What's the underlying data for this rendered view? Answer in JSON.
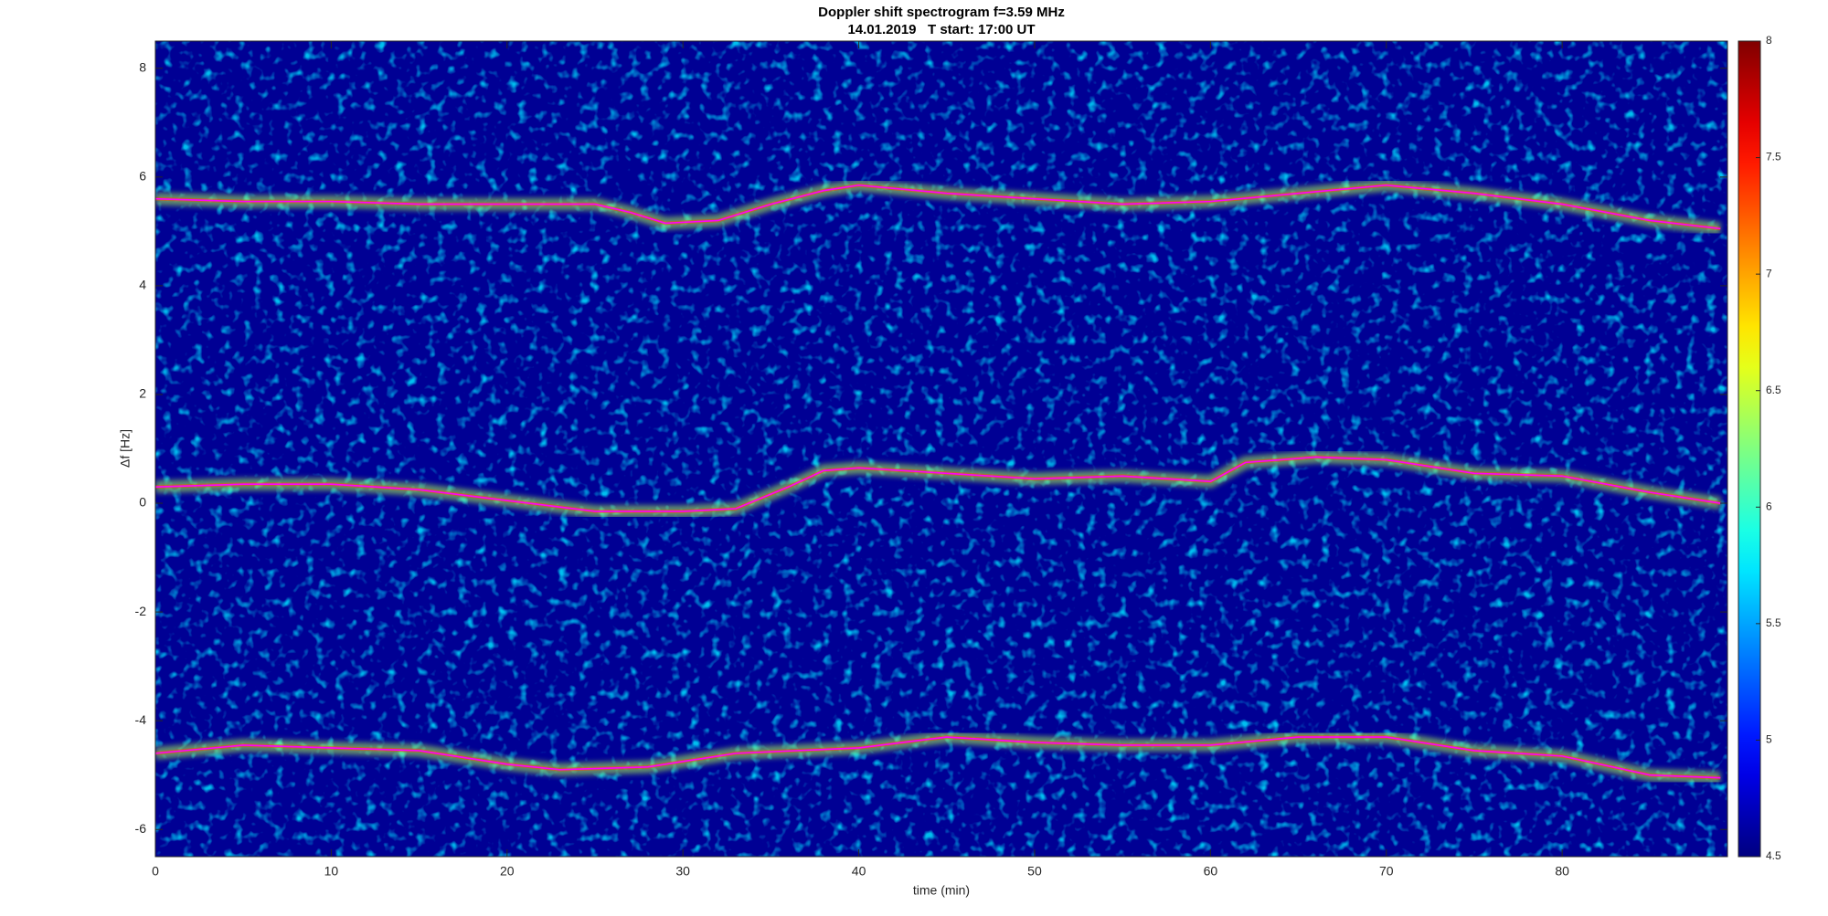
{
  "chart_data": {
    "type": "spectrogram",
    "title": "Doppler shift spectrogram f=3.59 MHz",
    "subtitle": "14.01.2019   T start: 17:00 UT",
    "x_label": "time (min)",
    "y_label": "Δf [Hz]",
    "xlim": [
      0,
      89.4
    ],
    "xticks": [
      0,
      10,
      20,
      30,
      40,
      50,
      60,
      70,
      80
    ],
    "ylim": [
      -6.5,
      8.5
    ],
    "yticks": [
      -6,
      -4,
      -2,
      0,
      2,
      4,
      6,
      8
    ],
    "colormap": "jet",
    "clim": [
      4.5,
      8
    ],
    "cticks": [
      4.5,
      5,
      5.5,
      6,
      6.5,
      7,
      7.5,
      8
    ],
    "series": [
      {
        "color": "#ff00ff",
        "x": [
          0,
          5,
          10,
          15,
          20,
          25,
          27,
          29,
          32,
          35,
          38,
          40,
          45,
          50,
          55,
          60,
          65,
          70,
          75,
          80,
          85,
          89
        ],
        "values": [
          5.6,
          5.55,
          5.55,
          5.5,
          5.5,
          5.5,
          5.35,
          5.15,
          5.2,
          5.5,
          5.75,
          5.85,
          5.7,
          5.6,
          5.5,
          5.55,
          5.7,
          5.85,
          5.7,
          5.5,
          5.2,
          5.05
        ]
      },
      {
        "color": "#ff00ff",
        "x": [
          0,
          5,
          10,
          15,
          20,
          25,
          30,
          33,
          36,
          38,
          40,
          45,
          50,
          55,
          60,
          62,
          66,
          70,
          75,
          80,
          85,
          89
        ],
        "values": [
          0.3,
          0.35,
          0.35,
          0.25,
          0.05,
          -0.15,
          -0.15,
          -0.1,
          0.3,
          0.6,
          0.65,
          0.55,
          0.45,
          0.5,
          0.4,
          0.75,
          0.85,
          0.8,
          0.55,
          0.5,
          0.2,
          0.0
        ]
      },
      {
        "color": "#ff00ff",
        "x": [
          0,
          5,
          10,
          15,
          20,
          23,
          28,
          33,
          40,
          45,
          50,
          55,
          60,
          65,
          70,
          75,
          80,
          85,
          89
        ],
        "values": [
          -4.6,
          -4.45,
          -4.5,
          -4.55,
          -4.8,
          -4.9,
          -4.85,
          -4.6,
          -4.5,
          -4.3,
          -4.4,
          -4.45,
          -4.45,
          -4.3,
          -4.3,
          -4.55,
          -4.65,
          -5.0,
          -5.05
        ]
      }
    ]
  }
}
